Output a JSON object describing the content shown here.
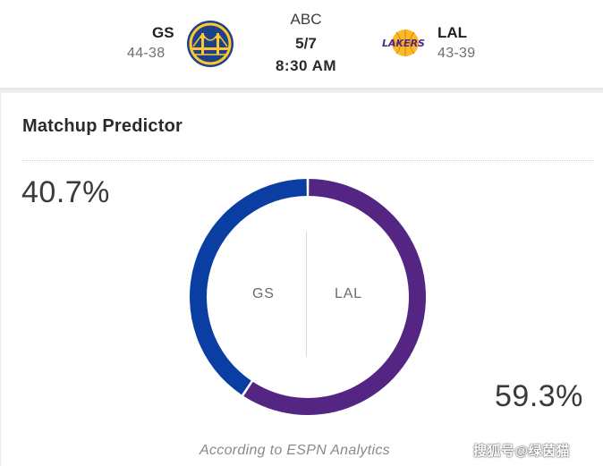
{
  "header": {
    "away": {
      "abbr": "GS",
      "record": "44-38",
      "logo_icon": "warriors-logo-icon"
    },
    "home": {
      "abbr": "LAL",
      "record": "43-39",
      "logo_icon": "lakers-logo-icon",
      "logo_text": "LAKERS"
    },
    "network": "ABC",
    "date": "5/7",
    "time": "8:30 AM"
  },
  "predictor": {
    "title": "Matchup Predictor",
    "away": {
      "label": "GS",
      "pct_text": "40.7%",
      "value": 40.7,
      "color": "#0b3ea3"
    },
    "home": {
      "label": "LAL",
      "pct_text": "59.3%",
      "value": 59.3,
      "color": "#552583"
    },
    "footnote": "According to ESPN Analytics"
  },
  "watermark": "搜狐号@绿茵猫",
  "colors": {
    "warriors_blue": "#1d428a",
    "warriors_gold": "#ffc72c",
    "lakers_purple": "#552583",
    "lakers_gold": "#fdb927"
  }
}
